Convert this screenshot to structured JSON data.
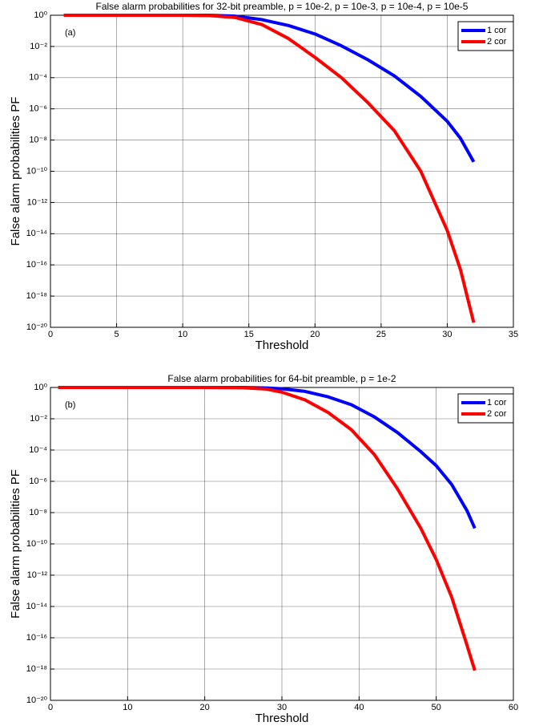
{
  "chart_data": [
    {
      "type": "line",
      "title": "False alarm probabilities for 32-bit preamble, p = 10e-2, p = 10e-3, p = 10e-4, p = 10e-5",
      "annotation": "(a)",
      "x_label": "Threshold",
      "y_label": "False alarm probabilities PF",
      "log_y": true,
      "grid": true,
      "legend": "upper right",
      "xlim": [
        0,
        35
      ],
      "xticks": [
        0,
        5,
        10,
        15,
        20,
        25,
        30,
        35
      ],
      "ylim": [
        1e-20,
        1
      ],
      "yticks": [
        {
          "value": 1,
          "label": "10⁰"
        },
        {
          "value": 0.01,
          "label": "10⁻²"
        },
        {
          "value": 0.0001,
          "label": "10⁻⁴"
        },
        {
          "value": 1e-06,
          "label": "10⁻⁶"
        },
        {
          "value": 1e-08,
          "label": "10⁻⁸"
        },
        {
          "value": 1e-10,
          "label": "10⁻¹⁰"
        },
        {
          "value": 1e-12,
          "label": "10⁻¹²"
        },
        {
          "value": 1e-14,
          "label": "10⁻¹⁴"
        },
        {
          "value": 1e-16,
          "label": "10⁻¹⁶"
        },
        {
          "value": 1e-18,
          "label": "10⁻¹⁸"
        },
        {
          "value": 1e-20,
          "label": "10⁻²⁰"
        }
      ],
      "x": [
        1,
        10,
        12,
        14,
        16,
        18,
        20,
        22,
        24,
        26,
        28,
        30,
        31,
        32
      ],
      "series": [
        {
          "name": "1 cor",
          "color": "#0000ff",
          "values": [
            1,
            1,
            1,
            0.87,
            0.52,
            0.22,
            0.063,
            0.011,
            0.0014,
            0.00013,
            6.3e-06,
            1.6e-07,
            1.3e-08,
            4e-10
          ]
        },
        {
          "name": "2 cor",
          "color": "#ff0000",
          "values": [
            1,
            1,
            0.95,
            0.71,
            0.25,
            0.032,
            0.002,
            0.0001,
            2.5e-06,
            4e-08,
            1e-10,
            1.6e-14,
            5e-17,
            2e-20
          ]
        }
      ]
    },
    {
      "type": "line",
      "title": "False alarm probabilities for 64-bit preamble, p = 1e-2",
      "annotation": "(b)",
      "x_label": "Threshold",
      "y_label": "False alarm probabilities PF",
      "log_y": true,
      "grid": true,
      "legend": "upper right",
      "xlim": [
        0,
        60
      ],
      "xticks": [
        0,
        10,
        20,
        30,
        40,
        50,
        60
      ],
      "ylim": [
        1e-20,
        1
      ],
      "yticks": [
        {
          "value": 1,
          "label": "10⁰"
        },
        {
          "value": 0.01,
          "label": "10⁻²"
        },
        {
          "value": 0.0001,
          "label": "10⁻⁴"
        },
        {
          "value": 1e-06,
          "label": "10⁻⁶"
        },
        {
          "value": 1e-08,
          "label": "10⁻⁸"
        },
        {
          "value": 1e-10,
          "label": "10⁻¹⁰"
        },
        {
          "value": 1e-12,
          "label": "10⁻¹²"
        },
        {
          "value": 1e-14,
          "label": "10⁻¹⁴"
        },
        {
          "value": 1e-16,
          "label": "10⁻¹⁶"
        },
        {
          "value": 1e-18,
          "label": "10⁻¹⁸"
        },
        {
          "value": 1e-20,
          "label": "10⁻²⁰"
        }
      ],
      "x": [
        1,
        20,
        25,
        28,
        30,
        33,
        36,
        39,
        42,
        45,
        48,
        50,
        52,
        54,
        55
      ],
      "series": [
        {
          "name": "1 cor",
          "color": "#0000ff",
          "values": [
            1,
            1,
            1,
            0.93,
            0.83,
            0.56,
            0.25,
            0.079,
            0.013,
            0.0013,
            7.9e-05,
            1e-05,
            6.3e-07,
            1.3e-08,
            1e-09
          ]
        },
        {
          "name": "2 cor",
          "color": "#ff0000",
          "values": [
            1,
            1,
            0.95,
            0.79,
            0.5,
            0.16,
            0.025,
            0.002,
            5e-05,
            3.2e-07,
            1e-09,
            1e-11,
            4e-14,
            3.2e-17,
            8e-19
          ]
        }
      ]
    }
  ]
}
